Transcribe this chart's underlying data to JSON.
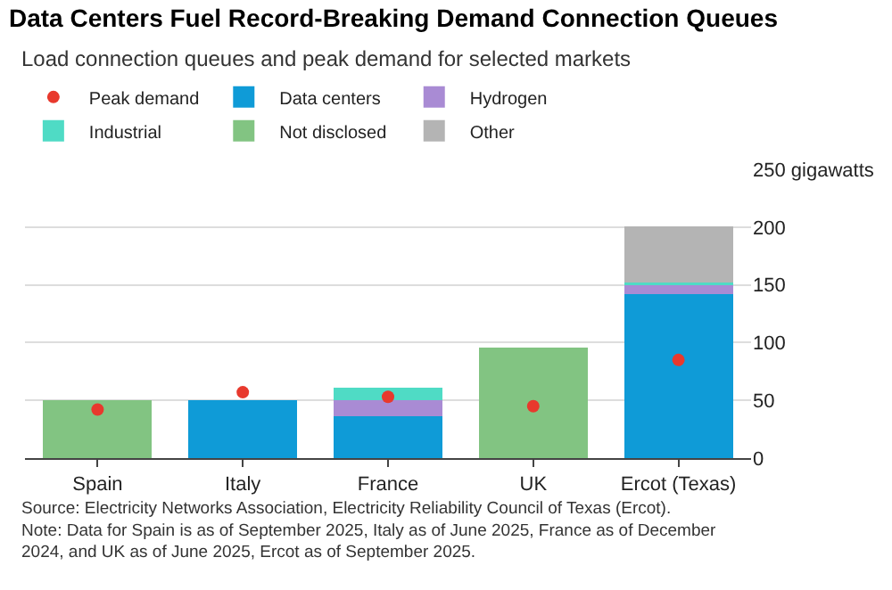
{
  "chart_data": {
    "type": "bar",
    "stacked": true,
    "title": "Data Centers Fuel Record-Breaking Demand Connection Queues",
    "subtitle": "Load connection queues and peak demand for selected markets",
    "categories": [
      "Spain",
      "Italy",
      "France",
      "UK",
      "Ercot (Texas)"
    ],
    "series": [
      {
        "name": "Peak demand",
        "type": "scatter",
        "color": "#e8392d",
        "marker": "circle",
        "x": [
          "Spain",
          "Italy",
          "France",
          "UK",
          "Ercot (Texas)"
        ],
        "values": [
          42,
          57,
          53,
          45,
          85
        ]
      },
      {
        "name": "Data centers",
        "color": "#0f9bd7",
        "values": [
          null,
          50,
          36,
          null,
          142
        ]
      },
      {
        "name": "Hydrogen",
        "color": "#a98bd4",
        "values": [
          null,
          null,
          14,
          null,
          8
        ]
      },
      {
        "name": "Industrial",
        "color": "#4fdbc5",
        "values": [
          null,
          null,
          11,
          null,
          2
        ]
      },
      {
        "name": "Not disclosed",
        "color": "#82c482",
        "values": [
          50,
          null,
          null,
          96,
          null
        ]
      },
      {
        "name": "Other",
        "color": "#b4b4b4",
        "values": [
          null,
          null,
          null,
          null,
          49
        ]
      }
    ],
    "ylim": [
      0,
      250
    ],
    "yticks": [
      0,
      50,
      100,
      150,
      200,
      {
        "value": 250,
        "label": "250 gigawatts"
      }
    ],
    "grid": "y",
    "legend": "top",
    "annotations": [
      "Source: Electricity Networks Association, Electricity Reliability Council of Texas (Ercot).",
      "Note: Data for Spain is as of September 2025, Italy as of June 2025, France as of December 2024, and UK as of June 2025, Ercot as of September 2025."
    ]
  }
}
